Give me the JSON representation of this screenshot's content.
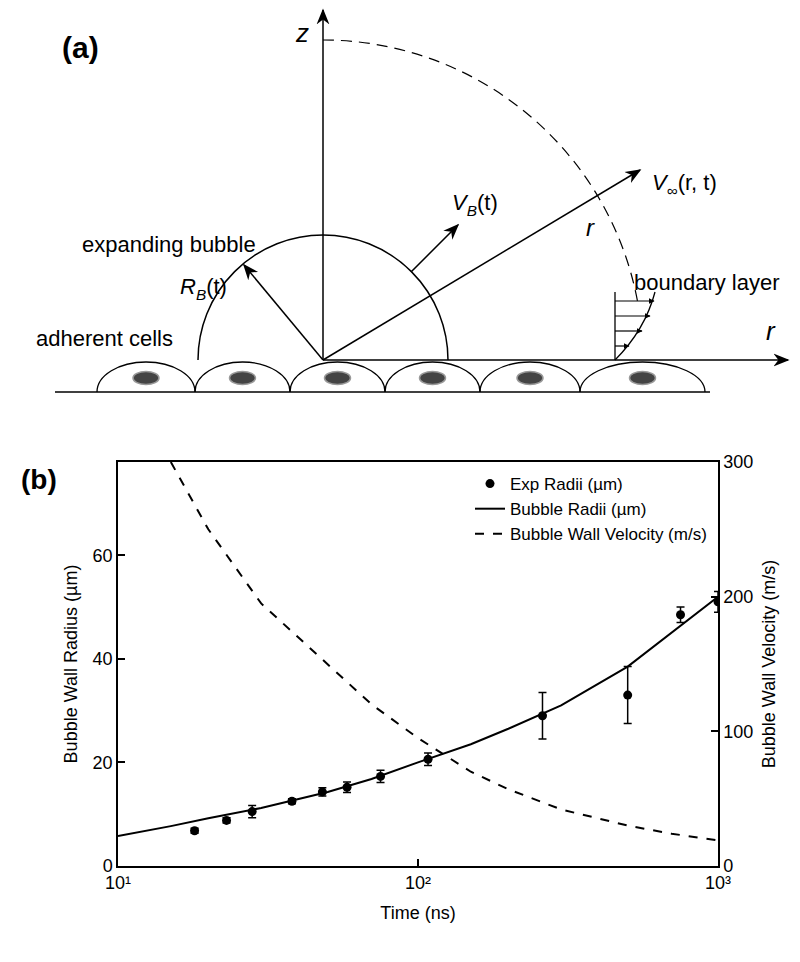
{
  "diagram": {
    "panel_label": "(a)",
    "axis_z": "z",
    "axis_r": "r",
    "radius_label": "r",
    "bubble_label": "expanding bubble",
    "cells_label": "adherent cells",
    "boundary_label": "boundary layer",
    "bubble_radius": {
      "text": "R",
      "sub": "B",
      "after": "(t)"
    },
    "wall_velocity": {
      "text": "V",
      "sub": "B",
      "after": "(t)"
    },
    "far_velocity": {
      "text": "V",
      "sub": "∞",
      "after": "(r, t)"
    }
  },
  "chart_data": {
    "type": "scatter",
    "annotations": [
      "(b)"
    ],
    "xlabel": "Time (ns)",
    "ylabel": "Bubble Wall Radius (µm)",
    "y2label": "Bubble Wall Velocity (m/s)",
    "log": "x",
    "grid": false,
    "legend": "top right",
    "xlim": [
      10,
      1000
    ],
    "xticks": [
      {
        "value": 10,
        "label": "10¹"
      },
      {
        "value": 100,
        "label": "10²"
      },
      {
        "value": 1000,
        "label": "10³"
      }
    ],
    "ylim": [
      0,
      78
    ],
    "yticks": [
      0,
      20,
      40,
      60
    ],
    "y2lim": [
      0,
      300
    ],
    "y2ticks": [
      0,
      100,
      200,
      300
    ],
    "series": [
      {
        "name": "Exp Radii (µm)",
        "type": "scatter",
        "marker": "circle",
        "color": "#000000",
        "x": [
          18,
          23,
          28,
          38,
          48,
          58,
          75,
          108,
          260,
          500,
          750,
          1000
        ],
        "values": [
          6.8,
          8.8,
          10.5,
          12.5,
          14.3,
          15.2,
          17.3,
          20.6,
          29,
          33,
          48.5,
          51
        ],
        "error": [
          0.5,
          0.5,
          1.2,
          0.5,
          0.8,
          1.0,
          1.2,
          1.2,
          4.5,
          5.5,
          1.5,
          2
        ]
      },
      {
        "name": "Bubble Radii (µm)",
        "type": "line",
        "line_style": "solid",
        "color": "#000000",
        "x": [
          10,
          15,
          20,
          30,
          50,
          70,
          100,
          150,
          200,
          300,
          500,
          700,
          1000
        ],
        "values": [
          5.8,
          7.7,
          9.2,
          11.2,
          14.3,
          16.8,
          20,
          23.5,
          26.5,
          31,
          38.5,
          45,
          52
        ]
      },
      {
        "name": "Bubble Wall Velocity (m/s)",
        "type": "line",
        "line_style": "dash",
        "color": "#000000",
        "axis": "y2",
        "x": [
          15,
          20,
          30,
          50,
          70,
          100,
          150,
          200,
          300,
          500,
          700,
          1000
        ],
        "values": [
          300,
          250,
          195,
          150,
          120,
          95,
          70,
          57,
          42,
          30,
          24,
          19
        ]
      }
    ]
  }
}
